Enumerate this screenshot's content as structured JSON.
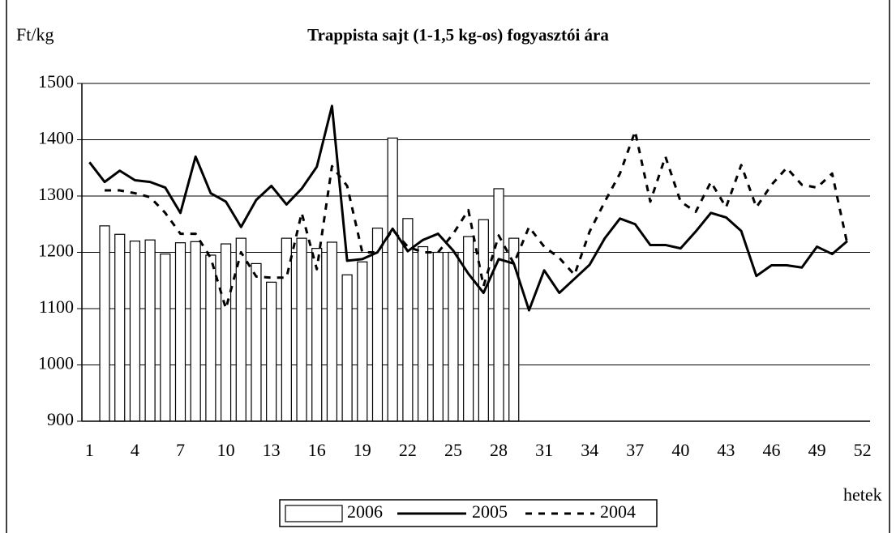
{
  "chart_data": {
    "type": "bar",
    "title": "Trappista sajt (1-1,5 kg-os) fogyasztói ára",
    "y_label": "Ft/kg",
    "x_label": "hetek",
    "categories": [
      "1",
      null,
      null,
      "4",
      null,
      null,
      "7",
      null,
      null,
      "10",
      null,
      null,
      "13",
      null,
      null,
      "16",
      null,
      null,
      "19",
      null,
      null,
      "22",
      null,
      null,
      "25",
      null,
      null,
      "28",
      null,
      null,
      "31",
      null,
      null,
      "34",
      null,
      null,
      "37",
      null,
      null,
      "40",
      null,
      null,
      "43",
      null,
      null,
      "46",
      null,
      null,
      "49",
      null,
      null,
      "52"
    ],
    "series": [
      {
        "name": "2006",
        "type": "bar",
        "color": "#ffffff",
        "values": [
          null,
          1247,
          1232,
          1220,
          1222,
          1197,
          1217,
          1219,
          1195,
          1215,
          1225,
          1180,
          1147,
          1225,
          1225,
          1207,
          1218,
          1160,
          1183,
          1243,
          1403,
          1260,
          1210,
          1200,
          1200,
          1228,
          1258,
          1313,
          1225,
          null,
          null,
          null,
          null,
          null,
          null,
          null,
          null,
          null,
          null,
          null,
          null,
          null,
          null,
          null,
          null,
          null,
          null,
          null,
          null,
          null,
          null,
          null
        ]
      },
      {
        "name": "2005",
        "type": "line",
        "color": "#000000",
        "dashed": false,
        "values": [
          1360,
          1325,
          1345,
          1328,
          1325,
          1315,
          1270,
          1370,
          1305,
          1290,
          1245,
          1293,
          1318,
          1285,
          1313,
          1352,
          1460,
          1185,
          1188,
          1200,
          1242,
          1202,
          1222,
          1233,
          1203,
          1162,
          1128,
          1188,
          1180,
          1097,
          1168,
          1128,
          1153,
          1178,
          1225,
          1260,
          1250,
          1213,
          1213,
          1207,
          1237,
          1270,
          1262,
          1238,
          1158,
          1177,
          1177,
          1173,
          1210,
          1197,
          1220,
          null
        ]
      },
      {
        "name": "2004",
        "type": "line",
        "color": "#000000",
        "dashed": true,
        "values": [
          null,
          1310,
          1310,
          1305,
          1298,
          1270,
          1233,
          1233,
          1190,
          1100,
          1200,
          1157,
          1155,
          1155,
          1270,
          1170,
          1353,
          1318,
          1200,
          1200,
          1240,
          1210,
          1200,
          1200,
          1233,
          1275,
          1140,
          1230,
          1180,
          1245,
          1210,
          1190,
          1160,
          1237,
          1290,
          1340,
          1415,
          1290,
          1370,
          1290,
          1272,
          1325,
          1280,
          1355,
          1280,
          1320,
          1350,
          1320,
          1315,
          1340,
          1215,
          null
        ]
      }
    ],
    "ylim": [
      900,
      1500
    ],
    "yticks": [
      900,
      1000,
      1100,
      1200,
      1300,
      1400,
      1500
    ],
    "grid": true,
    "legend": "bottom"
  }
}
